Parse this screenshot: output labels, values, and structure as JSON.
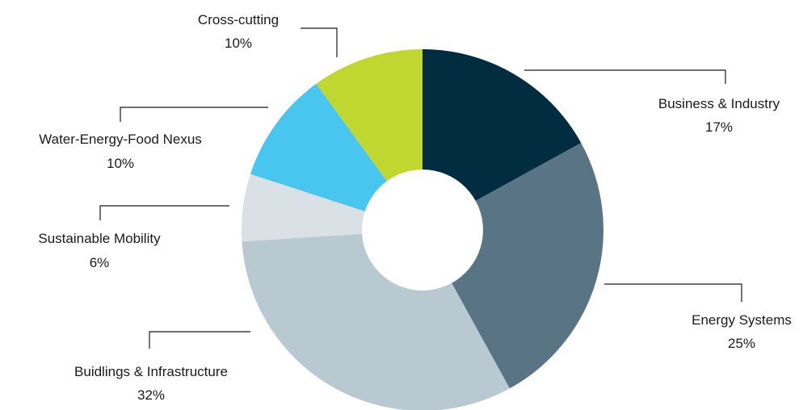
{
  "chart_data": {
    "type": "pie",
    "donut": true,
    "title": "",
    "slices": [
      {
        "label": "Business & Industry",
        "value": 17,
        "display": "17%",
        "color": "#022d40"
      },
      {
        "label": "Energy Systems",
        "value": 25,
        "display": "25%",
        "color": "#597484"
      },
      {
        "label": "Buidlings & Infrastructure",
        "value": 32,
        "display": "32%",
        "color": "#b8c9d1"
      },
      {
        "label": "Sustainable Mobility",
        "value": 6,
        "display": "6%",
        "color": "#d9e1e6"
      },
      {
        "label": "Water-Energy-Food Nexus",
        "value": 10,
        "display": "10%",
        "color": "#48c6ef"
      },
      {
        "label": "Cross-cutting",
        "value": 10,
        "display": "10%",
        "color": "#c0d730"
      }
    ],
    "start_position": "12 o'clock",
    "direction": "clockwise",
    "legend": "none"
  }
}
